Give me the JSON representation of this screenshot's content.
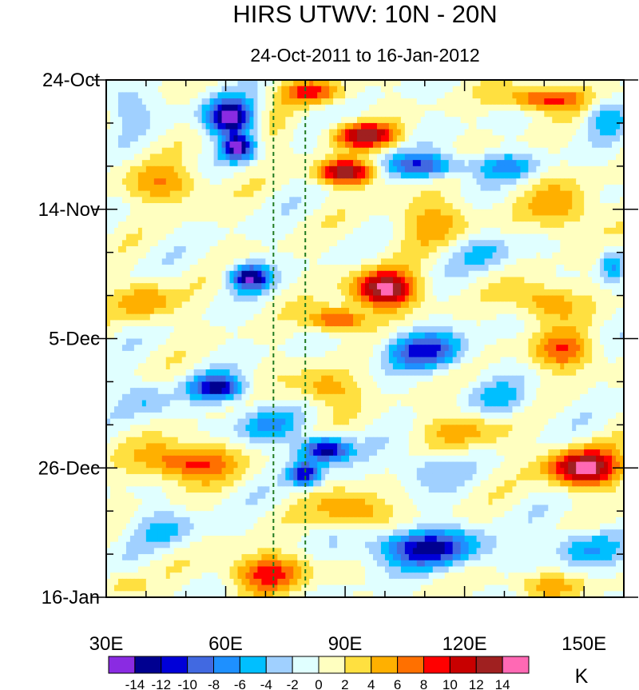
{
  "chart_data": {
    "type": "heatmap",
    "title": "HIRS UTWV: 10N - 20N",
    "subtitle": "24-Oct-2011 to 16-Jan-2012",
    "units_label": "K",
    "x_axis": {
      "range": [
        30,
        160
      ],
      "ticks": [
        {
          "value": 30,
          "label": "30E"
        },
        {
          "value": 60,
          "label": "60E"
        },
        {
          "value": 90,
          "label": "90E"
        },
        {
          "value": 120,
          "label": "120E"
        },
        {
          "value": 150,
          "label": "150E"
        }
      ],
      "minor_step": 10
    },
    "y_axis": {
      "range_days": [
        0,
        84
      ],
      "direction": "time increases downward",
      "ticks": [
        {
          "value": 0,
          "label": "24-Oct"
        },
        {
          "value": 21,
          "label": "14-Nov"
        },
        {
          "value": 42,
          "label": "5-Dec"
        },
        {
          "value": 63,
          "label": "26-Dec"
        },
        {
          "value": 84,
          "label": "16-Jan"
        }
      ],
      "minor_step": 7
    },
    "reference_lines": [
      {
        "x": 72,
        "style": "dashed",
        "color": "#1f7a1f"
      },
      {
        "x": 80,
        "style": "dashed",
        "color": "#1f7a1f"
      }
    ],
    "colorbar": {
      "levels": [
        -14,
        -12,
        -10,
        -8,
        -6,
        -4,
        -2,
        0,
        2,
        4,
        6,
        8,
        10,
        12,
        14
      ],
      "labels": [
        "-14",
        "-12",
        "-10",
        "-8",
        "-6",
        "-4",
        "-2",
        "0",
        "2",
        "4",
        "6",
        "8",
        "10",
        "12",
        "14"
      ],
      "colors": [
        "#8a2be2",
        "#000090",
        "#0000d8",
        "#4169e1",
        "#1e90ff",
        "#00bfff",
        "#a0d0ff",
        "#e0ffff",
        "#ffffc0",
        "#ffe040",
        "#ffb000",
        "#ff7000",
        "#ff0000",
        "#c80000",
        "#a02020",
        "#ff69b4"
      ]
    },
    "anomaly_centers": [
      {
        "lon": 61,
        "day": 6,
        "value": -16,
        "lon_radius": 6,
        "day_radius": 3
      },
      {
        "lon": 63,
        "day": 11,
        "value": -14,
        "lon_radius": 4,
        "day_radius": 2
      },
      {
        "lon": 35,
        "day": 4,
        "value": -4,
        "lon_radius": 5,
        "day_radius": 3
      },
      {
        "lon": 72,
        "day": 8,
        "value": 2,
        "lon_radius": 5,
        "day_radius": 3
      },
      {
        "lon": 82,
        "day": 2,
        "value": 8,
        "lon_radius": 8,
        "day_radius": 2
      },
      {
        "lon": 95,
        "day": 9,
        "value": 12,
        "lon_radius": 8,
        "day_radius": 2
      },
      {
        "lon": 90,
        "day": 15,
        "value": 14,
        "lon_radius": 7,
        "day_radius": 2
      },
      {
        "lon": 110,
        "day": 14,
        "value": -10,
        "lon_radius": 9,
        "day_radius": 2
      },
      {
        "lon": 140,
        "day": 3,
        "value": 10,
        "lon_radius": 10,
        "day_radius": 2
      },
      {
        "lon": 130,
        "day": 14,
        "value": -6,
        "lon_radius": 8,
        "day_radius": 2
      },
      {
        "lon": 155,
        "day": 6,
        "value": -5,
        "lon_radius": 5,
        "day_radius": 3
      },
      {
        "lon": 45,
        "day": 17,
        "value": 6,
        "lon_radius": 10,
        "day_radius": 3
      },
      {
        "lon": 112,
        "day": 23,
        "value": 5,
        "lon_radius": 10,
        "day_radius": 4
      },
      {
        "lon": 145,
        "day": 21,
        "value": 6,
        "lon_radius": 8,
        "day_radius": 4
      },
      {
        "lon": 66,
        "day": 32,
        "value": -14,
        "lon_radius": 5,
        "day_radius": 2
      },
      {
        "lon": 100,
        "day": 34,
        "value": 15,
        "lon_radius": 8,
        "day_radius": 3
      },
      {
        "lon": 88,
        "day": 39,
        "value": 10,
        "lon_radius": 7,
        "day_radius": 2
      },
      {
        "lon": 40,
        "day": 36,
        "value": 6,
        "lon_radius": 8,
        "day_radius": 3
      },
      {
        "lon": 125,
        "day": 28,
        "value": -4,
        "lon_radius": 8,
        "day_radius": 3
      },
      {
        "lon": 157,
        "day": 30,
        "value": -6,
        "lon_radius": 3,
        "day_radius": 3
      },
      {
        "lon": 140,
        "day": 36,
        "value": 7,
        "lon_radius": 8,
        "day_radius": 3
      },
      {
        "lon": 110,
        "day": 44,
        "value": -10,
        "lon_radius": 10,
        "day_radius": 3
      },
      {
        "lon": 145,
        "day": 44,
        "value": 8,
        "lon_radius": 8,
        "day_radius": 3
      },
      {
        "lon": 58,
        "day": 50,
        "value": -12,
        "lon_radius": 7,
        "day_radius": 2
      },
      {
        "lon": 85,
        "day": 50,
        "value": 6,
        "lon_radius": 8,
        "day_radius": 3
      },
      {
        "lon": 130,
        "day": 52,
        "value": -4,
        "lon_radius": 8,
        "day_radius": 3
      },
      {
        "lon": 40,
        "day": 52,
        "value": -4,
        "lon_radius": 6,
        "day_radius": 3
      },
      {
        "lon": 120,
        "day": 57,
        "value": 5,
        "lon_radius": 10,
        "day_radius": 3
      },
      {
        "lon": 70,
        "day": 56,
        "value": -6,
        "lon_radius": 8,
        "day_radius": 3
      },
      {
        "lon": 85,
        "day": 60,
        "value": -14,
        "lon_radius": 6,
        "day_radius": 2
      },
      {
        "lon": 80,
        "day": 64,
        "value": -12,
        "lon_radius": 4,
        "day_radius": 2
      },
      {
        "lon": 50,
        "day": 62,
        "value": 10,
        "lon_radius": 11,
        "day_radius": 3
      },
      {
        "lon": 150,
        "day": 63,
        "value": 15,
        "lon_radius": 9,
        "day_radius": 3
      },
      {
        "lon": 110,
        "day": 63,
        "value": -4,
        "lon_radius": 8,
        "day_radius": 3
      },
      {
        "lon": 92,
        "day": 70,
        "value": 7,
        "lon_radius": 9,
        "day_radius": 3
      },
      {
        "lon": 45,
        "day": 73,
        "value": -4,
        "lon_radius": 8,
        "day_radius": 3
      },
      {
        "lon": 110,
        "day": 76,
        "value": -12,
        "lon_radius": 14,
        "day_radius": 3
      },
      {
        "lon": 150,
        "day": 76,
        "value": -6,
        "lon_radius": 8,
        "day_radius": 3
      },
      {
        "lon": 70,
        "day": 80,
        "value": 9,
        "lon_radius": 10,
        "day_radius": 3
      },
      {
        "lon": 140,
        "day": 82,
        "value": 5,
        "lon_radius": 10,
        "day_radius": 2
      },
      {
        "lon": 35,
        "day": 82,
        "value": 3,
        "lon_radius": 5,
        "day_radius": 2
      }
    ]
  }
}
